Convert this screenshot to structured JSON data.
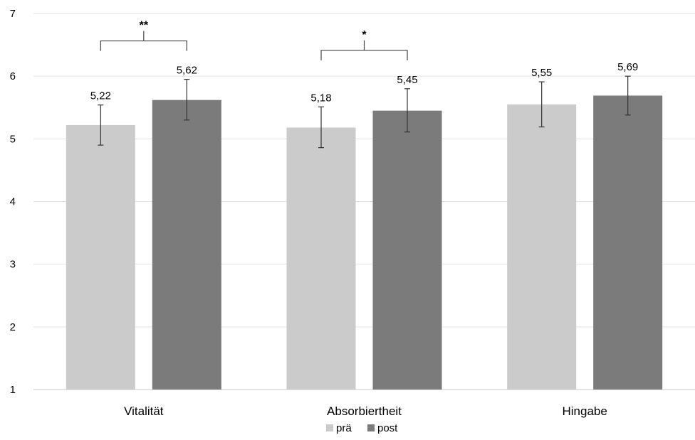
{
  "chart_data": {
    "type": "bar",
    "title": "",
    "xlabel": "",
    "ylabel": "",
    "ylim": [
      1,
      7
    ],
    "yticks": [
      "1",
      "2",
      "3",
      "4",
      "5",
      "6",
      "7"
    ],
    "grid": true,
    "legend_position": "bottom",
    "categories": [
      "Vitalität",
      "Absorbiertheit",
      "Hingabe"
    ],
    "series": [
      {
        "name": "prä",
        "color": "#cbcbcb",
        "values": [
          5.22,
          5.18,
          5.55
        ],
        "labels": [
          "5,22",
          "5,18",
          "5,55"
        ],
        "err_low": [
          4.9,
          4.86,
          5.19
        ],
        "err_high": [
          5.54,
          5.51,
          5.91
        ]
      },
      {
        "name": "post",
        "color": "#7b7b7b",
        "values": [
          5.62,
          5.45,
          5.69
        ],
        "labels": [
          "5,62",
          "5,45",
          "5,69"
        ],
        "err_low": [
          5.3,
          5.11,
          5.38
        ],
        "err_high": [
          5.95,
          5.8,
          6.0
        ]
      }
    ],
    "significance": [
      {
        "category_index": 0,
        "label": "**"
      },
      {
        "category_index": 1,
        "label": "*"
      }
    ]
  }
}
